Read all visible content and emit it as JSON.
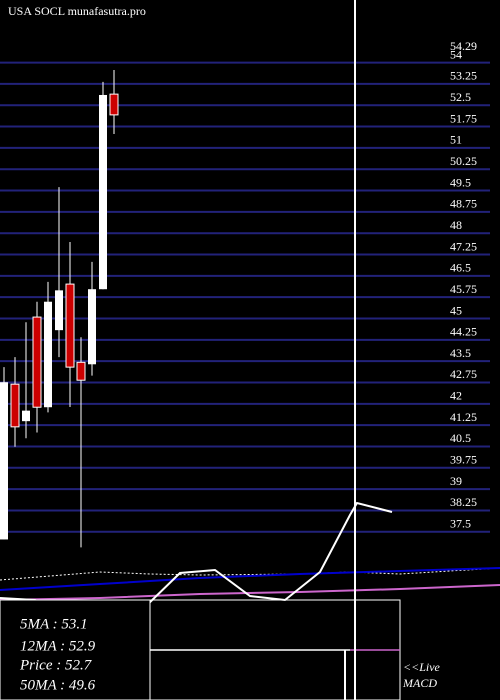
{
  "chart_data": [
    {
      "type": "candlestick",
      "title": "USA SOCL munafasutra.pro",
      "open": [
        37.23,
        42.69,
        41.39,
        45.05,
        41.88,
        44.59,
        46.21,
        43.46,
        43.39,
        46.03,
        52.89
      ],
      "close": [
        42.76,
        41.19,
        41.76,
        41.88,
        45.59,
        45.99,
        43.29,
        42.83,
        46.03,
        52.86,
        52.16
      ],
      "high": [
        43.29,
        43.64,
        44.87,
        45.59,
        46.29,
        49.62,
        47.69,
        44.34,
        46.99,
        53.32,
        53.74
      ],
      "low": [
        37.23,
        40.49,
        40.79,
        40.99,
        41.7,
        43.64,
        41.89,
        36.95,
        42.99,
        46.03,
        51.49
      ],
      "up_color": "#ffffff",
      "down_color": "#cc0000",
      "grid_color": "#22227a",
      "ylim": [
        37,
        56.2
      ],
      "yticks": [
        54.29,
        54,
        53.25,
        52.5,
        51.75,
        51,
        50.25,
        49.5,
        48.75,
        48,
        47.25,
        46.5,
        45.75,
        45,
        44.25,
        43.5,
        42.75,
        42,
        41.25,
        40.5,
        39.75,
        39,
        38.25,
        37.5
      ],
      "grid": true,
      "info": [
        "5MA : 53.1",
        "12MA : 52.9",
        "Price   : 52.7",
        "50MA : 49.6"
      ],
      "annotation": [
        "<<Live",
        "MACD"
      ]
    },
    {
      "type": "line",
      "xlim": [
        0,
        500
      ],
      "ylim": [
        0,
        100
      ],
      "series": [
        {
          "color": "#ffffff",
          "dash": true,
          "x": [
            0,
            50,
            100,
            150,
            200,
            300,
            350,
            400,
            500
          ],
          "values": [
            60,
            62,
            64,
            63,
            62.5,
            63,
            64,
            63,
            66
          ]
        },
        {
          "color": "#0000cc",
          "x": [
            0,
            100,
            200,
            300,
            400,
            500
          ],
          "values": [
            55,
            58,
            61,
            63,
            64.5,
            66
          ]
        },
        {
          "color": "#cc66cc",
          "x": [
            0,
            100,
            200,
            300,
            400,
            500
          ],
          "values": [
            50,
            51,
            53,
            54,
            55.5,
            57.5
          ]
        },
        {
          "color": "#ffffff",
          "x": [
            0,
            35,
            70,
            105,
            145,
            180,
            215,
            250,
            285,
            320,
            350,
            357,
            392
          ],
          "values": [
            51,
            50,
            43,
            45,
            46.5,
            63.5,
            65,
            52,
            50,
            64,
            92.5,
            98.5,
            94
          ]
        }
      ]
    }
  ]
}
